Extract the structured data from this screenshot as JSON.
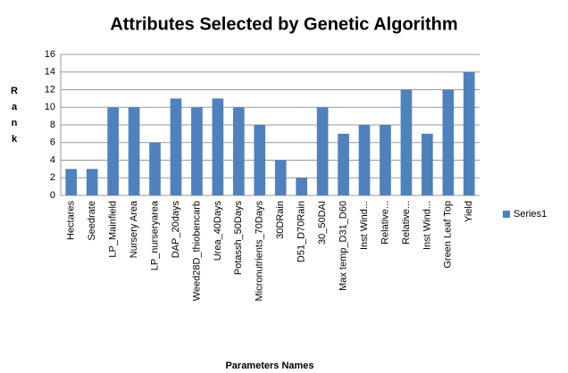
{
  "chart_data": {
    "type": "bar",
    "title": "Attributes Selected by Genetic Algorithm",
    "x_label": "Parameters Names",
    "y_label": "Rank",
    "categories": [
      "Hectares",
      "Seedrate",
      "LP_Mainfield",
      "Nursery Area",
      "LP_nurseryarea",
      "DAP_20days",
      "Weed28D_thiobencarb",
      "Urea_40Days",
      "Potassh_50Days",
      "Micronutrients_70Days",
      "30DRain",
      "D51_D70Rain",
      "30_50DAI",
      "Max temp_D31_D60",
      "Inst Wind...",
      "Relative...",
      "Relative...",
      "Inst Wind...",
      "Green Leaf Top",
      "Yield"
    ],
    "series": [
      {
        "name": "Series1",
        "color": "#4f81bd",
        "values": [
          3,
          3,
          10,
          10,
          6,
          11,
          10,
          11,
          10,
          8,
          4,
          2,
          10,
          7,
          8,
          8,
          12,
          7,
          12,
          14
        ]
      }
    ],
    "ylim": [
      0,
      16
    ],
    "yticks": [
      0,
      2,
      4,
      6,
      8,
      10,
      12,
      14,
      16
    ],
    "grid": true,
    "legend": "right"
  }
}
